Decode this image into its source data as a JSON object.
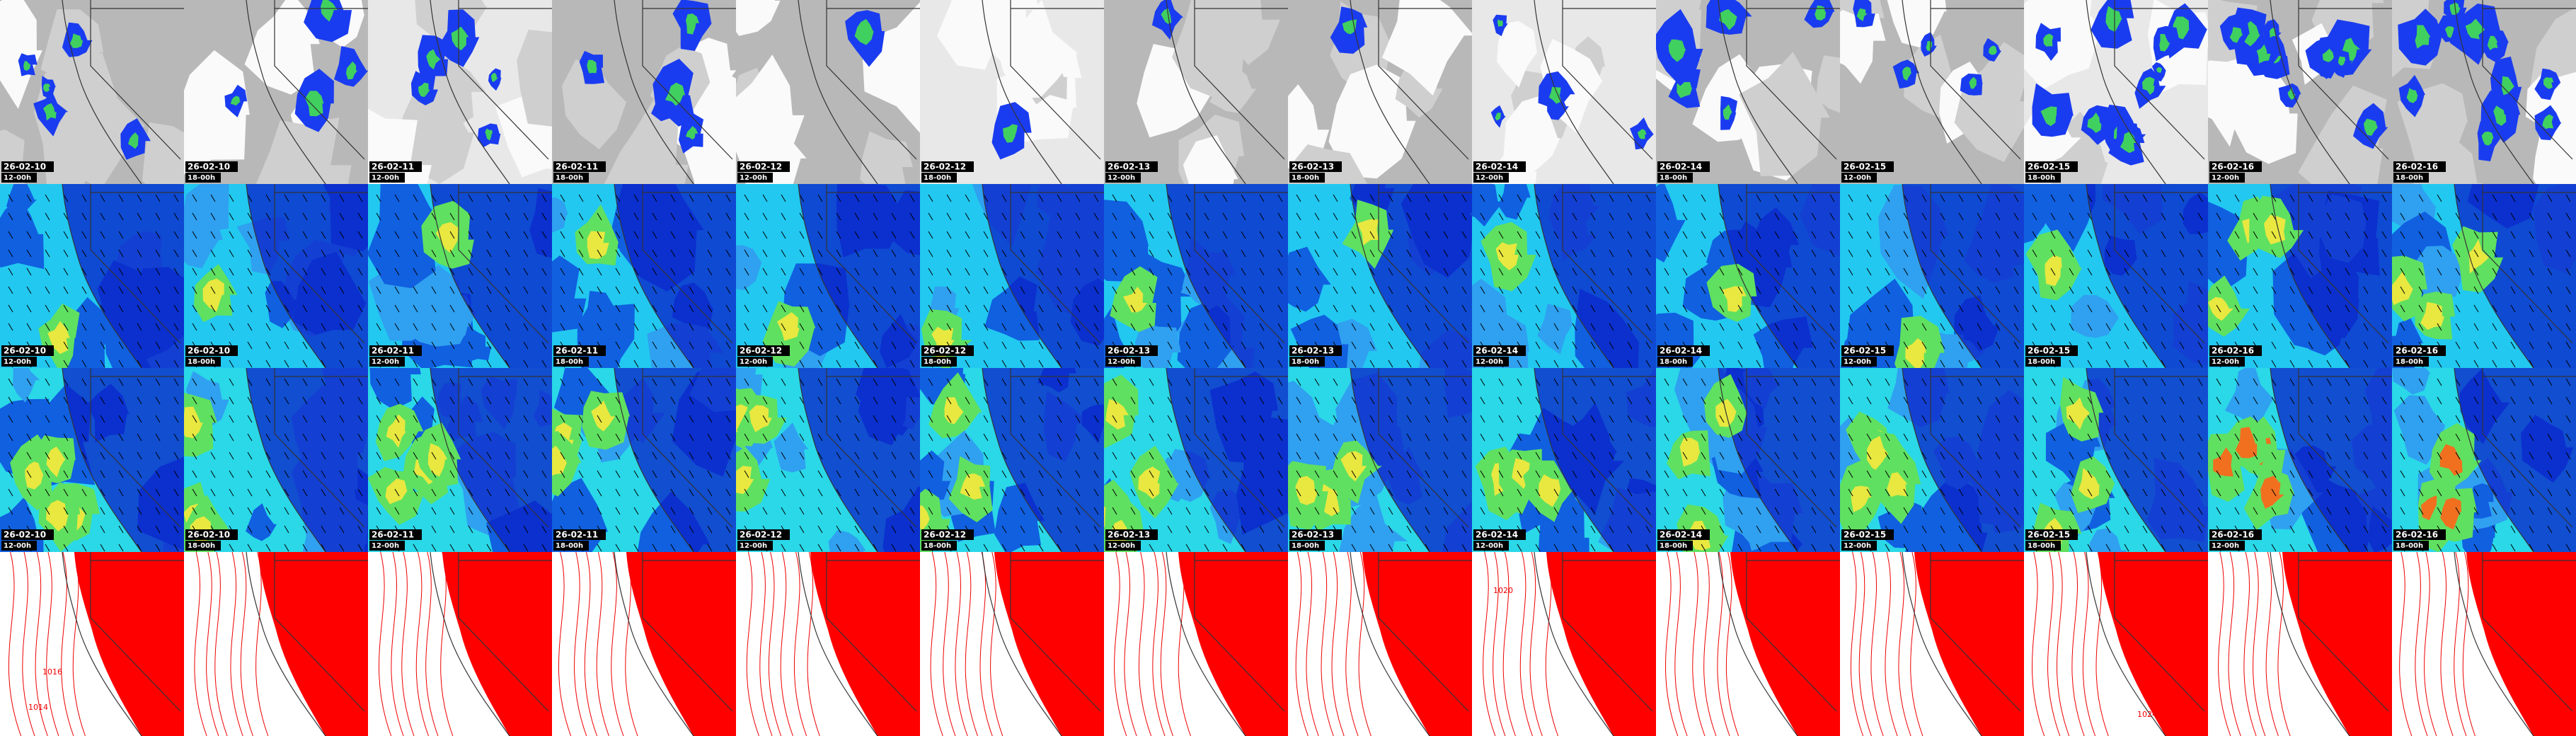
{
  "panels": [
    {
      "date": "26-02-10",
      "run": "12-00h"
    },
    {
      "date": "26-02-10",
      "run": "18-00h"
    },
    {
      "date": "26-02-11",
      "run": "12-00h"
    },
    {
      "date": "26-02-11",
      "run": "18-00h"
    },
    {
      "date": "26-02-12",
      "run": "12-00h"
    },
    {
      "date": "26-02-12",
      "run": "18-00h"
    },
    {
      "date": "26-02-13",
      "run": "12-00h"
    },
    {
      "date": "26-02-13",
      "run": "18-00h"
    },
    {
      "date": "26-02-14",
      "run": "12-00h"
    },
    {
      "date": "26-02-14",
      "run": "18-00h"
    },
    {
      "date": "26-02-15",
      "run": "12-00h"
    },
    {
      "date": "26-02-15",
      "run": "18-00h"
    },
    {
      "date": "26-02-16",
      "run": "12-00h"
    },
    {
      "date": "26-02-16",
      "run": "18-00h"
    }
  ],
  "contour_labels": [
    "1014",
    "1016",
    "1020",
    "1024"
  ]
}
